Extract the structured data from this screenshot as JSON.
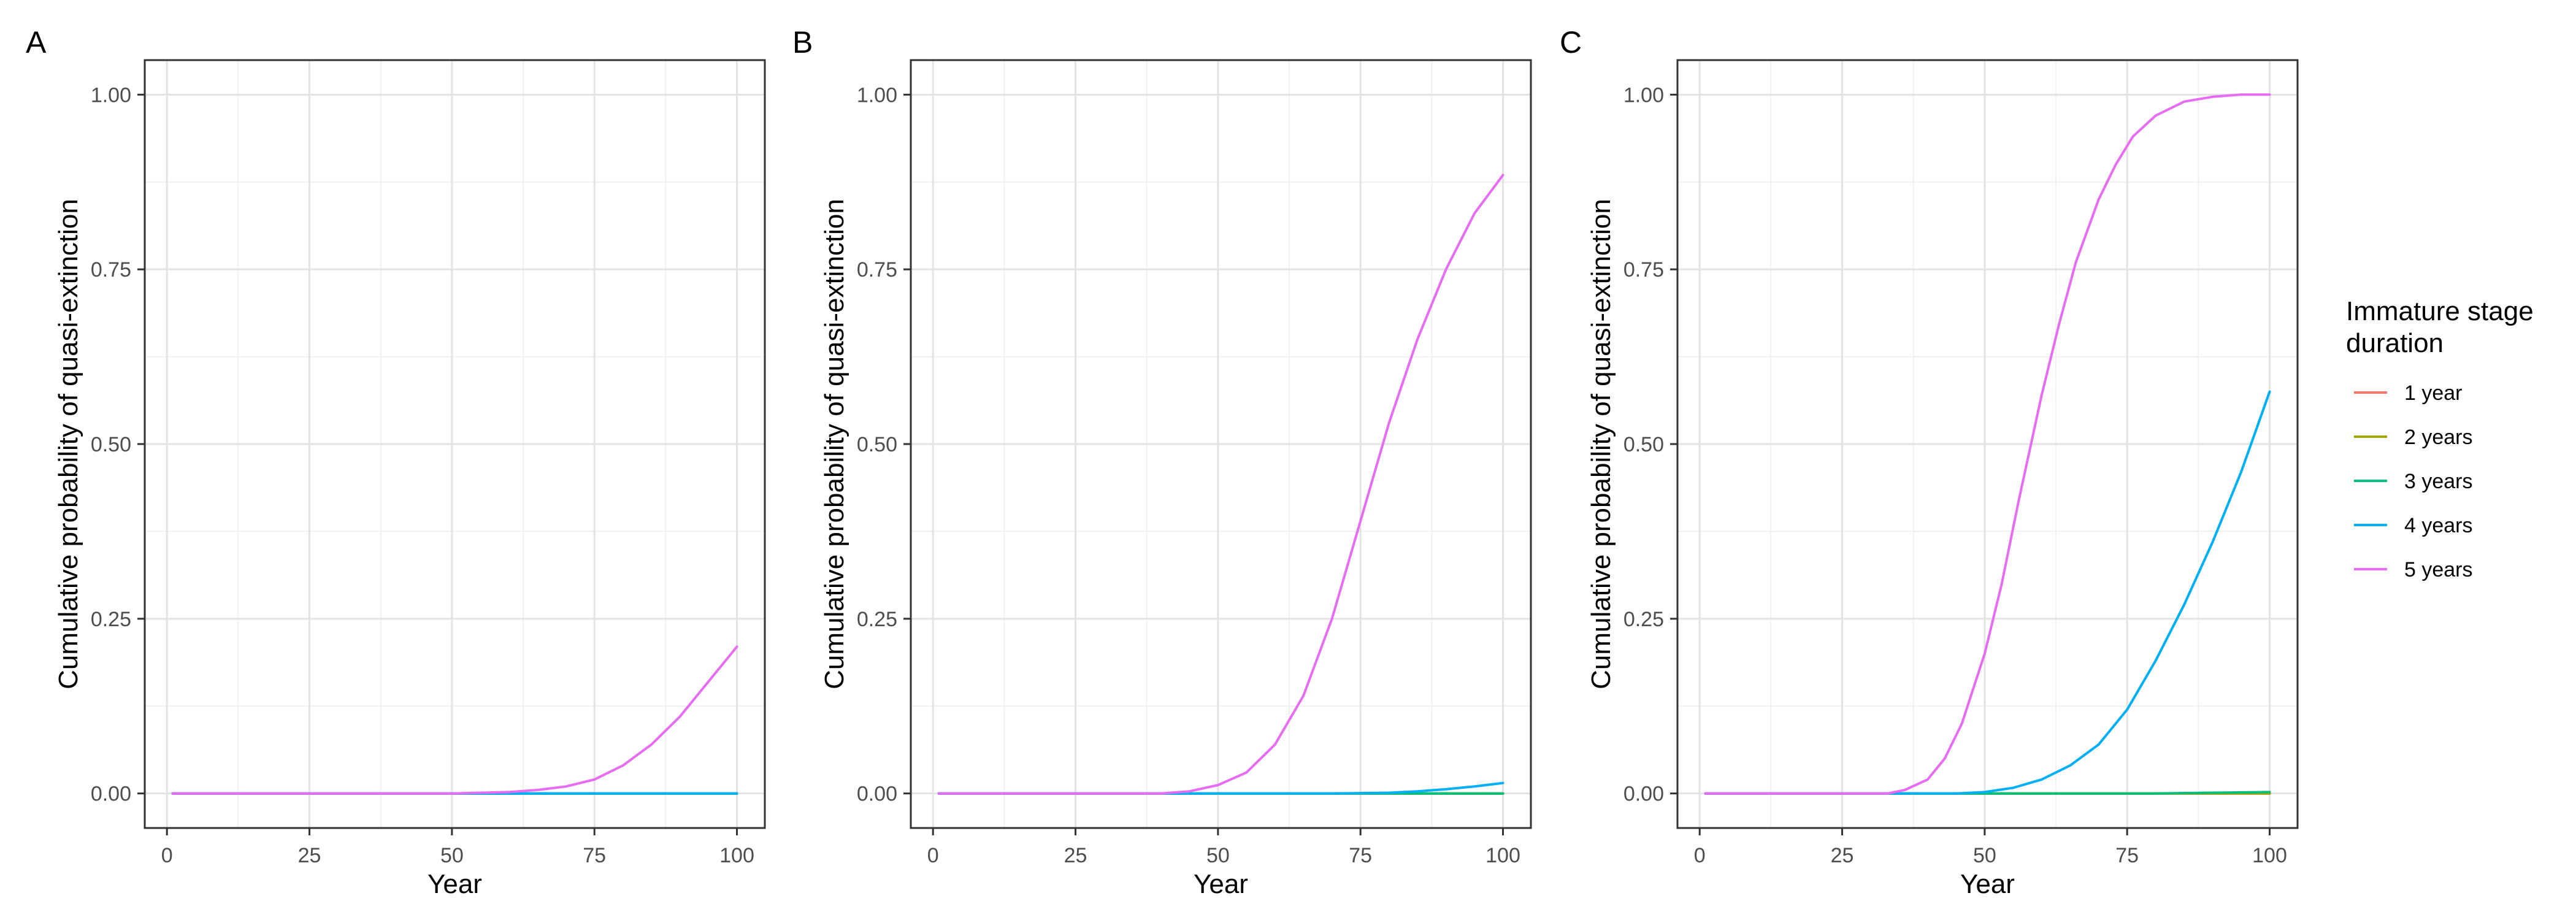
{
  "figure": {
    "legend": {
      "title_line1": "Immature stage",
      "title_line2": "duration",
      "placement": "right"
    }
  },
  "series_styles": [
    {
      "name": "1 year",
      "color": "#F8766D"
    },
    {
      "name": "2 years",
      "color": "#A3A500"
    },
    {
      "name": "3 years",
      "color": "#00BF7D"
    },
    {
      "name": "4 years",
      "color": "#00B0F6"
    },
    {
      "name": "5 years",
      "color": "#E76BF3"
    }
  ],
  "chart_data": [
    {
      "panel_label": "A",
      "type": "line",
      "xlabel": "Year",
      "ylabel": "Cumulative probability of quasi-extinction",
      "xlim": [
        1,
        100
      ],
      "ylim": [
        0,
        1
      ],
      "xticks": [
        0,
        25,
        50,
        75,
        100
      ],
      "yticks": [
        0.0,
        0.25,
        0.5,
        0.75,
        1.0
      ],
      "ytick_labels": [
        "0.00",
        "0.25",
        "0.50",
        "0.75",
        "1.00"
      ],
      "grid": true,
      "series": [
        {
          "name": "1 year",
          "x": [
            1,
            100
          ],
          "values": [
            0,
            0
          ]
        },
        {
          "name": "2 years",
          "x": [
            1,
            100
          ],
          "values": [
            0,
            0
          ]
        },
        {
          "name": "3 years",
          "x": [
            1,
            100
          ],
          "values": [
            0,
            0
          ]
        },
        {
          "name": "4 years",
          "x": [
            1,
            100
          ],
          "values": [
            0,
            0
          ]
        },
        {
          "name": "5 years",
          "x": [
            1,
            50,
            55,
            60,
            65,
            70,
            75,
            80,
            85,
            90,
            95,
            100
          ],
          "values": [
            0,
            0,
            0.001,
            0.002,
            0.005,
            0.01,
            0.02,
            0.04,
            0.07,
            0.11,
            0.16,
            0.21
          ]
        }
      ]
    },
    {
      "panel_label": "B",
      "type": "line",
      "xlabel": "Year",
      "ylabel": "Cumulative probability of quasi-extinction",
      "xlim": [
        1,
        100
      ],
      "ylim": [
        0,
        1
      ],
      "xticks": [
        0,
        25,
        50,
        75,
        100
      ],
      "yticks": [
        0.0,
        0.25,
        0.5,
        0.75,
        1.0
      ],
      "ytick_labels": [
        "0.00",
        "0.25",
        "0.50",
        "0.75",
        "1.00"
      ],
      "grid": true,
      "series": [
        {
          "name": "1 year",
          "x": [
            1,
            100
          ],
          "values": [
            0,
            0
          ]
        },
        {
          "name": "2 years",
          "x": [
            1,
            100
          ],
          "values": [
            0,
            0
          ]
        },
        {
          "name": "3 years",
          "x": [
            1,
            100
          ],
          "values": [
            0,
            0
          ]
        },
        {
          "name": "4 years",
          "x": [
            1,
            70,
            80,
            85,
            90,
            95,
            100
          ],
          "values": [
            0,
            0,
            0.001,
            0.003,
            0.006,
            0.01,
            0.015
          ]
        },
        {
          "name": "5 years",
          "x": [
            1,
            40,
            45,
            50,
            55,
            60,
            65,
            70,
            75,
            80,
            85,
            90,
            95,
            100
          ],
          "values": [
            0,
            0,
            0.003,
            0.012,
            0.03,
            0.07,
            0.14,
            0.25,
            0.39,
            0.53,
            0.65,
            0.75,
            0.83,
            0.885
          ]
        }
      ]
    },
    {
      "panel_label": "C",
      "type": "line",
      "xlabel": "Year",
      "ylabel": "Cumulative probability of quasi-extinction",
      "xlim": [
        1,
        100
      ],
      "ylim": [
        0,
        1
      ],
      "xticks": [
        0,
        25,
        50,
        75,
        100
      ],
      "yticks": [
        0.0,
        0.25,
        0.5,
        0.75,
        1.0
      ],
      "ytick_labels": [
        "0.00",
        "0.25",
        "0.50",
        "0.75",
        "1.00"
      ],
      "grid": true,
      "series": [
        {
          "name": "1 year",
          "x": [
            1,
            100
          ],
          "values": [
            0,
            0
          ]
        },
        {
          "name": "2 years",
          "x": [
            1,
            100
          ],
          "values": [
            0,
            0
          ]
        },
        {
          "name": "3 years",
          "x": [
            1,
            80,
            90,
            100
          ],
          "values": [
            0,
            0,
            0.001,
            0.002
          ]
        },
        {
          "name": "4 years",
          "x": [
            1,
            45,
            50,
            55,
            60,
            65,
            70,
            75,
            80,
            85,
            90,
            95,
            100
          ],
          "values": [
            0,
            0,
            0.002,
            0.008,
            0.02,
            0.04,
            0.07,
            0.12,
            0.19,
            0.27,
            0.36,
            0.46,
            0.575
          ]
        },
        {
          "name": "5 years",
          "x": [
            1,
            33,
            36,
            40,
            43,
            46,
            50,
            53,
            56,
            60,
            63,
            66,
            70,
            73,
            76,
            80,
            85,
            90,
            95,
            100
          ],
          "values": [
            0,
            0,
            0.005,
            0.02,
            0.05,
            0.1,
            0.2,
            0.3,
            0.42,
            0.57,
            0.67,
            0.76,
            0.85,
            0.9,
            0.94,
            0.97,
            0.99,
            0.997,
            1.0,
            1.0
          ]
        }
      ]
    }
  ]
}
